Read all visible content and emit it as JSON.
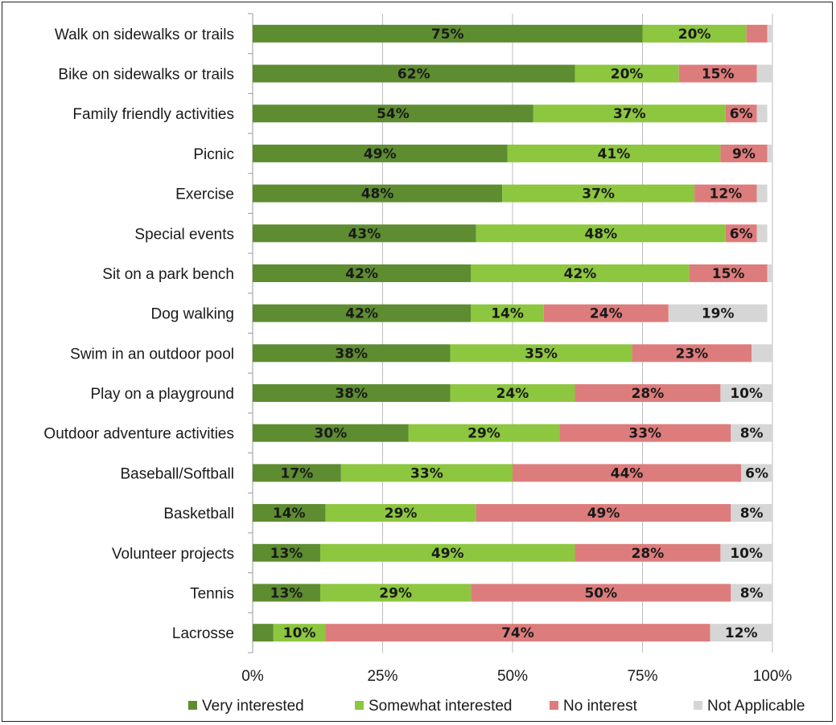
{
  "chart_data": {
    "type": "bar",
    "orientation": "horizontal",
    "stacked": true,
    "title": "",
    "xlabel": "",
    "ylabel": "",
    "xlim": [
      0,
      100
    ],
    "x_ticks": [
      "0%",
      "25%",
      "50%",
      "75%",
      "100%"
    ],
    "grid": "vertical",
    "legend_position": "bottom",
    "categories": [
      "Walk on sidewalks or trails",
      "Bike on sidewalks or trails",
      "Family friendly activities",
      "Picnic",
      "Exercise",
      "Special events",
      "Sit on a park bench",
      "Dog walking",
      "Swim in an outdoor pool",
      "Play on a playground",
      "Outdoor adventure activities",
      "Baseball/Softball",
      "Basketball",
      "Volunteer projects",
      "Tennis",
      "Lacrosse"
    ],
    "series": [
      {
        "name": "Very interested",
        "color": "#5e8c31",
        "values": [
          75,
          62,
          54,
          49,
          48,
          43,
          42,
          42,
          38,
          38,
          30,
          17,
          14,
          13,
          13,
          4
        ],
        "labels": [
          "75%",
          "62%",
          "54%",
          "49%",
          "48%",
          "43%",
          "42%",
          "42%",
          "38%",
          "38%",
          "30%",
          "17%",
          "14%",
          "13%",
          "13%",
          ""
        ]
      },
      {
        "name": "Somewhat interested",
        "color": "#8dc63f",
        "values": [
          20,
          20,
          37,
          41,
          37,
          48,
          42,
          14,
          35,
          24,
          29,
          33,
          29,
          49,
          29,
          10
        ],
        "labels": [
          "20%",
          "20%",
          "37%",
          "41%",
          "37%",
          "48%",
          "42%",
          "14%",
          "35%",
          "24%",
          "29%",
          "33%",
          "29%",
          "49%",
          "29%",
          "10%"
        ]
      },
      {
        "name": "No interest",
        "color": "#dd7c7c",
        "values": [
          4,
          15,
          6,
          9,
          12,
          6,
          15,
          24,
          23,
          28,
          33,
          44,
          49,
          28,
          50,
          74
        ],
        "labels": [
          "",
          "15%",
          "6%",
          "9%",
          "12%",
          "6%",
          "15%",
          "24%",
          "23%",
          "28%",
          "33%",
          "44%",
          "49%",
          "28%",
          "50%",
          "74%"
        ]
      },
      {
        "name": "Not Applicable",
        "color": "#d6d6d6",
        "values": [
          1,
          3,
          2,
          1,
          2,
          2,
          2,
          19,
          4,
          10,
          8,
          6,
          8,
          10,
          8,
          12
        ],
        "labels": [
          "",
          "",
          "",
          "",
          "",
          "",
          "",
          "19%",
          "",
          "10%",
          "8%",
          "6%",
          "8%",
          "10%",
          "8%",
          "12%"
        ]
      }
    ]
  }
}
